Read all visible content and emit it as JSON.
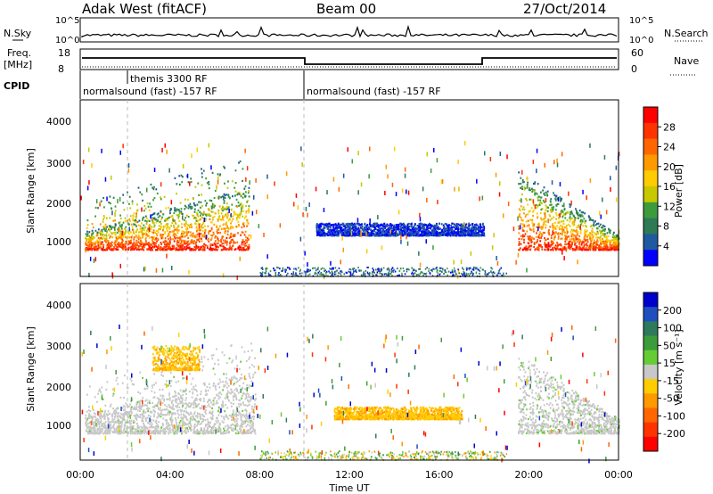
{
  "header": {
    "title": "Adak West (fitACF)",
    "beam": "Beam 00",
    "date": "27/Oct/2014"
  },
  "top_panels": {
    "nsky_label": "N.Sky",
    "nsearch_label": "N.Search",
    "freq_label": "Freq.",
    "freq_unit": "[MHz]",
    "nave_label": "Nave",
    "cpid_label": "CPID",
    "noise_ticks_left": [
      "10^5",
      "10^0"
    ],
    "noise_ticks_right": [
      "10^5",
      "10^0"
    ],
    "freq_ticks": [
      "18",
      "8"
    ],
    "nave_ticks": [
      "60",
      "0"
    ],
    "cpid_segments": [
      {
        "label": "normalsound (fast) -157 RF",
        "start": 0,
        "end": 10
      },
      {
        "label": "themis 3300 RF",
        "start": 2,
        "end": 2
      },
      {
        "label": "normalsound (fast) -157 RF",
        "start": 10,
        "end": 24
      }
    ]
  },
  "colorbars": {
    "power": {
      "label": "Power [dB]",
      "ticks": [
        "28",
        "24",
        "20",
        "16",
        "12",
        "8",
        "4"
      ],
      "colors": [
        "#ff0000",
        "#ff3300",
        "#ff6600",
        "#ff9900",
        "#ffcc00",
        "#c8c800",
        "#3c9c3c",
        "#2d7a55",
        "#1e5aa0",
        "#0000ff"
      ]
    },
    "velocity": {
      "label": "Velocity [m s⁻¹]",
      "ticks": [
        "200",
        "100",
        "50",
        "15",
        "-15",
        "-50",
        "-100",
        "-200"
      ],
      "colors": [
        "#0000cc",
        "#1f4fbf",
        "#2f7a5c",
        "#3c9c3c",
        "#66cc33",
        "#c8c8c8",
        "#ffcc00",
        "#ff9900",
        "#ff6600",
        "#ff3300",
        "#ff0000"
      ]
    }
  },
  "chart_data": [
    {
      "type": "heatmap",
      "name": "power",
      "ylabel": "Slant Range [km]",
      "xlabel": "Time UT",
      "xlim": [
        0,
        24
      ],
      "ylim": [
        180,
        4500
      ],
      "yticks": [
        1000,
        2000,
        3000,
        4000
      ],
      "xticks": [
        "00:00",
        "04:00",
        "08:00",
        "12:00",
        "16:00",
        "20:00",
        "00:00"
      ],
      "features": [
        {
          "desc": "strong band",
          "t_start": 0.2,
          "t_end": 7.5,
          "range_km": [
            850,
            2300
          ],
          "value_db": 26
        },
        {
          "desc": "weak streak",
          "t_start": 10.5,
          "t_end": 18,
          "range_km": [
            1200,
            1500
          ],
          "value_db": 6
        },
        {
          "desc": "strong band",
          "t_start": 19.5,
          "t_end": 24,
          "range_km": [
            850,
            2800
          ],
          "value_db": 24
        }
      ]
    },
    {
      "type": "heatmap",
      "name": "velocity",
      "ylabel": "Slant Range [km]",
      "xlabel": "Time UT",
      "xlim": [
        0,
        24
      ],
      "ylim": [
        180,
        4500
      ],
      "yticks": [
        1000,
        2000,
        3000,
        4000
      ],
      "xticks": [
        "00:00",
        "04:00",
        "08:00",
        "12:00",
        "16:00",
        "20:00",
        "00:00"
      ],
      "features": [
        {
          "desc": "ground scatter (grey)",
          "t_start": 0.2,
          "t_end": 7.8,
          "range_km": [
            850,
            2300
          ],
          "value_ms": 0
        },
        {
          "desc": "negative velocity",
          "t_start": 3.2,
          "t_end": 5.3,
          "range_km": [
            2400,
            3000
          ],
          "value_ms": -50
        },
        {
          "desc": "negative velocity streak",
          "t_start": 11.3,
          "t_end": 17,
          "range_km": [
            1200,
            1500
          ],
          "value_ms": -50
        },
        {
          "desc": "ground scatter (grey)",
          "t_start": 19.5,
          "t_end": 24,
          "range_km": [
            850,
            2800
          ],
          "value_ms": 0
        }
      ]
    }
  ]
}
